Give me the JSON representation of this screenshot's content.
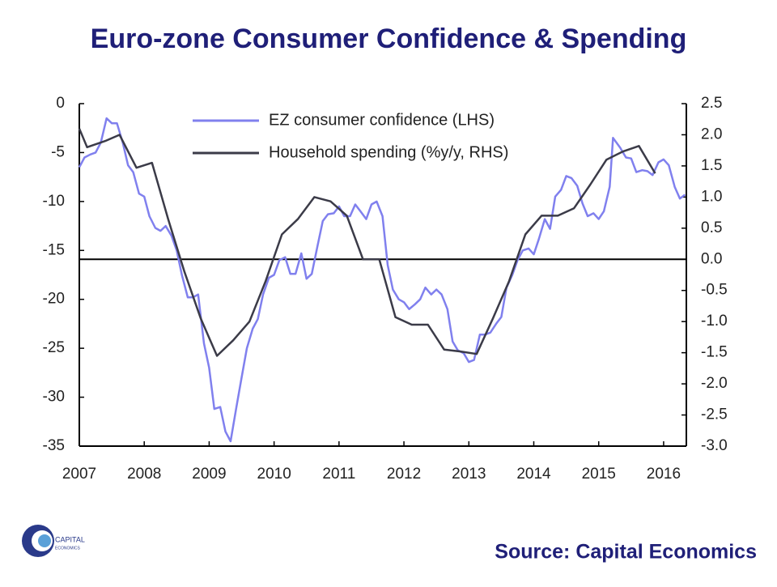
{
  "chart_data": {
    "type": "line",
    "title": "Euro-zone Consumer Confidence & Spending",
    "source": "Source: Capital Economics",
    "logo": [
      "CAPITAL",
      "ECONOMICS"
    ],
    "xlim": [
      2007,
      2016.35
    ],
    "xticks": [
      2007,
      2008,
      2009,
      2010,
      2011,
      2012,
      2013,
      2014,
      2015,
      2016
    ],
    "ylim": [
      -35,
      0
    ],
    "yticks": [
      0,
      -5,
      -10,
      -15,
      -20,
      -25,
      -30,
      -35
    ],
    "y2lim": [
      -3,
      2.5
    ],
    "y2ticks": [
      2.5,
      {
        "value": 2,
        "label": "2.0"
      },
      1.5,
      {
        "value": 1,
        "label": "1.0"
      },
      0.5,
      {
        "value": 0,
        "label": "0.0"
      },
      -0.5,
      {
        "value": -1,
        "label": "-1.0"
      },
      -1.5,
      {
        "value": -2,
        "label": "-2.0"
      },
      -2.5,
      {
        "value": -3,
        "label": "-3.0"
      }
    ],
    "legend": "top",
    "series": [
      {
        "name": "EZ consumer confidence  (LHS)",
        "color": "#8080ee",
        "x": [
          2007.0,
          2007.08,
          2007.17,
          2007.25,
          2007.33,
          2007.42,
          2007.5,
          2007.58,
          2007.67,
          2007.75,
          2007.83,
          2007.92,
          2008.0,
          2008.08,
          2008.17,
          2008.25,
          2008.33,
          2008.42,
          2008.5,
          2008.58,
          2008.67,
          2008.75,
          2008.83,
          2008.92,
          2009.0,
          2009.08,
          2009.17,
          2009.25,
          2009.33,
          2009.42,
          2009.5,
          2009.58,
          2009.67,
          2009.75,
          2009.83,
          2009.92,
          2010.0,
          2010.08,
          2010.17,
          2010.25,
          2010.33,
          2010.42,
          2010.5,
          2010.58,
          2010.67,
          2010.75,
          2010.83,
          2010.92,
          2011.0,
          2011.08,
          2011.17,
          2011.25,
          2011.33,
          2011.42,
          2011.5,
          2011.58,
          2011.67,
          2011.75,
          2011.83,
          2011.92,
          2012.0,
          2012.08,
          2012.17,
          2012.25,
          2012.33,
          2012.42,
          2012.5,
          2012.58,
          2012.67,
          2012.75,
          2012.83,
          2012.92,
          2013.0,
          2013.08,
          2013.17,
          2013.25,
          2013.33,
          2013.42,
          2013.5,
          2013.58,
          2013.67,
          2013.75,
          2013.83,
          2013.92,
          2014.0,
          2014.08,
          2014.17,
          2014.25,
          2014.33,
          2014.42,
          2014.5,
          2014.58,
          2014.67,
          2014.75,
          2014.83,
          2014.92,
          2015.0,
          2015.08,
          2015.17,
          2015.22,
          2015.33,
          2015.42,
          2015.5,
          2015.58,
          2015.67,
          2015.75,
          2015.83,
          2015.92,
          2016.0,
          2016.08,
          2016.17,
          2016.25,
          2016.33
        ],
        "values": [
          -6.5,
          -5.5,
          -5.2,
          -5,
          -4,
          -1.5,
          -2,
          -2,
          -4,
          -6.3,
          -7,
          -9.2,
          -9.5,
          -11.5,
          -12.7,
          -13,
          -12.5,
          -13.5,
          -15,
          -17.5,
          -19.8,
          -19.8,
          -19.5,
          -24.5,
          -27,
          -31.2,
          -31,
          -33.5,
          -34.5,
          -31,
          -28,
          -25,
          -23,
          -22,
          -19.5,
          -17.8,
          -17.5,
          -16,
          -15.7,
          -17.4,
          -17.4,
          -15.3,
          -17.9,
          -17.4,
          -14.5,
          -12,
          -11.3,
          -11.2,
          -10.5,
          -11.5,
          -11.5,
          -10.3,
          -11,
          -11.8,
          -10.3,
          -10,
          -11.5,
          -16.5,
          -19,
          -20,
          -20.3,
          -21,
          -20.5,
          -20,
          -18.8,
          -19.5,
          -19,
          -19.5,
          -21,
          -24.3,
          -25.2,
          -25.5,
          -26.4,
          -26.2,
          -23.6,
          -23.6,
          -23.4,
          -22.5,
          -21.8,
          -18.8,
          -17.5,
          -16,
          -15,
          -14.8,
          -15.4,
          -13.8,
          -11.8,
          -12.8,
          -9.5,
          -8.8,
          -7.4,
          -7.6,
          -8.4,
          -10.2,
          -11.5,
          -11.2,
          -11.8,
          -11,
          -8.5,
          -3.5,
          -4.5,
          -5.5,
          -5.6,
          -7,
          -6.8,
          -6.9,
          -7.3,
          -6,
          -5.7,
          -6.3,
          -8.5,
          -9.7,
          -9.3
        ]
      },
      {
        "name": "Household spending (%y/y, RHS)",
        "color": "#3b3b48",
        "axis": "y2",
        "x": [
          2007.0,
          2007.12,
          2007.4,
          2007.62,
          2007.88,
          2008.12,
          2008.37,
          2008.62,
          2008.87,
          2009.12,
          2009.37,
          2009.62,
          2009.87,
          2010.12,
          2010.37,
          2010.62,
          2010.87,
          2011.12,
          2011.37,
          2011.62,
          2011.87,
          2012.12,
          2012.37,
          2012.62,
          2012.87,
          2013.12,
          2013.37,
          2013.62,
          2013.87,
          2014.12,
          2014.37,
          2014.62,
          2014.87,
          2015.12,
          2015.37,
          2015.62,
          2015.87
        ],
        "values": [
          2.1,
          1.8,
          1.9,
          2.0,
          1.47,
          1.55,
          0.64,
          -0.2,
          -0.95,
          -1.55,
          -1.3,
          -1.0,
          -0.35,
          0.4,
          0.65,
          1.0,
          0.93,
          0.7,
          0,
          0,
          -0.93,
          -1.05,
          -1.05,
          -1.45,
          -1.48,
          -1.52,
          -0.95,
          -0.35,
          0.4,
          0.7,
          0.7,
          0.82,
          1.2,
          1.6,
          1.73,
          1.82,
          1.38
        ]
      }
    ]
  }
}
